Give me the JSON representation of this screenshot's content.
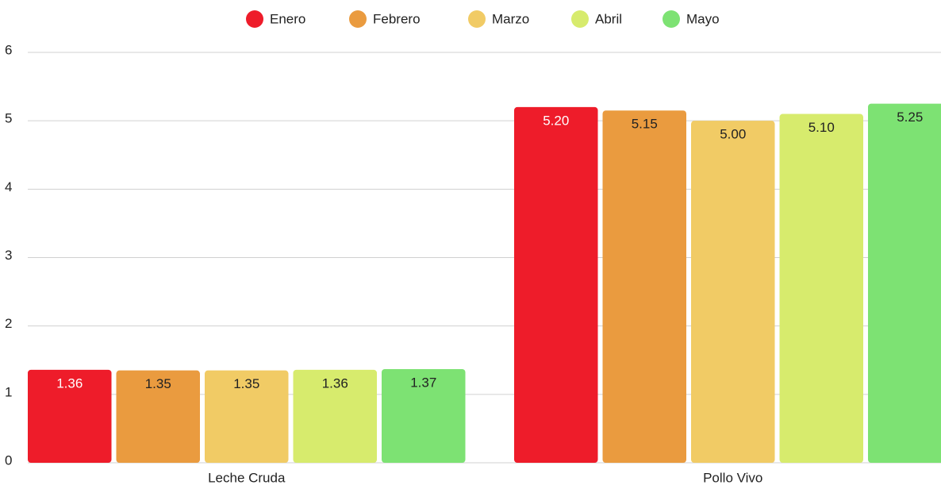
{
  "chart_data": {
    "type": "bar",
    "categories": [
      "Leche Cruda",
      "Pollo Vivo"
    ],
    "series": [
      {
        "name": "Enero",
        "color": "#ee1c2a",
        "values": [
          1.36,
          5.2
        ],
        "value_labels": [
          "1.36",
          "5.20"
        ]
      },
      {
        "name": "Febrero",
        "color": "#ea9b3f",
        "values": [
          1.35,
          5.15
        ],
        "value_labels": [
          "1.35",
          "5.15"
        ]
      },
      {
        "name": "Marzo",
        "color": "#f1cb65",
        "values": [
          1.35,
          5.0
        ],
        "value_labels": [
          "1.35",
          "5.00"
        ]
      },
      {
        "name": "Abril",
        "color": "#d7eb6d",
        "values": [
          1.36,
          5.1
        ],
        "value_labels": [
          "1.36",
          "5.10"
        ]
      },
      {
        "name": "Mayo",
        "color": "#7de273",
        "values": [
          1.37,
          5.25
        ],
        "value_labels": [
          "1.37",
          "5.25"
        ]
      }
    ],
    "ylim": [
      0,
      6
    ],
    "yticks": [
      0,
      1,
      2,
      3,
      4,
      5,
      6
    ],
    "grid": true,
    "legend": "top"
  }
}
